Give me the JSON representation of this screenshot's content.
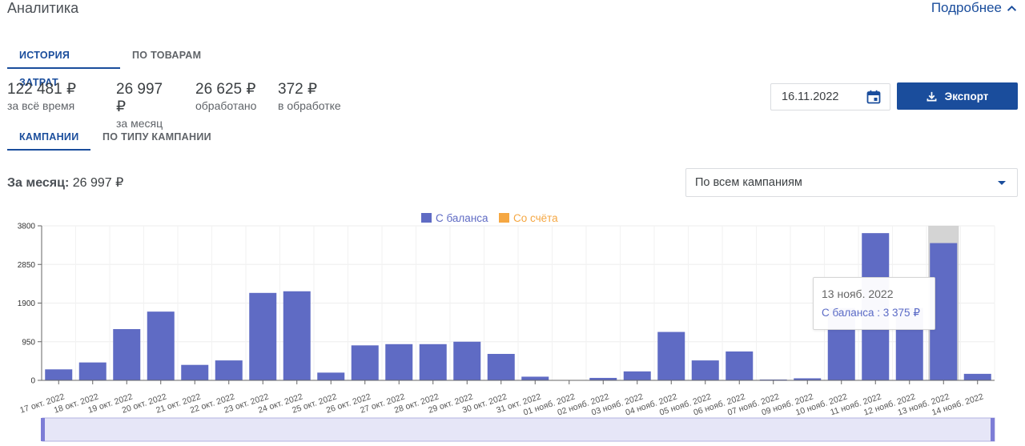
{
  "header": {
    "title": "Аналитика",
    "more_label": "Подробнее"
  },
  "tabs_top": [
    {
      "label": "ИСТОРИЯ ЗАТРАТ",
      "active": true
    },
    {
      "label": "ПО ТОВАРАМ",
      "active": false
    }
  ],
  "stats": [
    {
      "value": "122 481 ₽",
      "label": "за всё время"
    },
    {
      "value": "26 997 ₽",
      "label": "за месяц"
    },
    {
      "value": "26 625 ₽",
      "label": "обработано"
    },
    {
      "value": "372 ₽",
      "label": "в обработке"
    }
  ],
  "date": {
    "value": "16.11.2022"
  },
  "export": {
    "label": "Экспорт"
  },
  "tabs_mid": [
    {
      "label": "КАМПАНИИ",
      "active": true
    },
    {
      "label": "ПО ТИПУ КАМПАНИИ",
      "active": false
    }
  ],
  "month_total": {
    "label": "За месяц:",
    "value": "26 997 ₽"
  },
  "campaign_select": {
    "value": "По всем кампаниям"
  },
  "tooltip": {
    "title": "13 нояб. 2022",
    "text": "С баланса : 3 375 ₽"
  },
  "colors": {
    "balance": "#5f6bc4",
    "account": "#f5a742",
    "accent": "#1a4d9c"
  },
  "chart_data": {
    "type": "bar",
    "legend": [
      {
        "name": "С баланса",
        "color": "#5f6bc4"
      },
      {
        "name": "Со счёта",
        "color": "#f5a742"
      }
    ],
    "legend_position": "top-center",
    "ylim": [
      0,
      3800
    ],
    "yticks": [
      "0",
      "950",
      "1900",
      "2850",
      "3800"
    ],
    "grid": true,
    "highlighted_category": "13 нояб. 2022",
    "categories": [
      "17 окт. 2022",
      "18 окт. 2022",
      "19 окт. 2022",
      "20 окт. 2022",
      "21 окт. 2022",
      "22 окт. 2022",
      "23 окт. 2022",
      "24 окт. 2022",
      "25 окт. 2022",
      "26 окт. 2022",
      "27 окт. 2022",
      "28 окт. 2022",
      "29 окт. 2022",
      "30 окт. 2022",
      "31 окт. 2022",
      "01 нояб. 2022",
      "02 нояб. 2022",
      "03 нояб. 2022",
      "04 нояб. 2022",
      "05 нояб. 2022",
      "06 нояб. 2022",
      "07 нояб. 2022",
      "09 нояб. 2022",
      "10 нояб. 2022",
      "11 нояб. 2022",
      "12 нояб. 2022",
      "13 нояб. 2022",
      "14 нояб. 2022"
    ],
    "series": [
      {
        "name": "С баланса",
        "values": [
          270,
          440,
          1260,
          1690,
          380,
          490,
          2150,
          2190,
          190,
          860,
          890,
          890,
          950,
          650,
          90,
          0,
          60,
          220,
          1190,
          490,
          710,
          10,
          50,
          1780,
          3620,
          1780,
          3375,
          160
        ]
      },
      {
        "name": "Со счёта",
        "values": [
          0,
          0,
          0,
          0,
          0,
          0,
          0,
          0,
          0,
          0,
          0,
          0,
          0,
          0,
          0,
          0,
          0,
          0,
          0,
          0,
          0,
          0,
          0,
          0,
          0,
          0,
          0,
          0
        ]
      }
    ]
  }
}
